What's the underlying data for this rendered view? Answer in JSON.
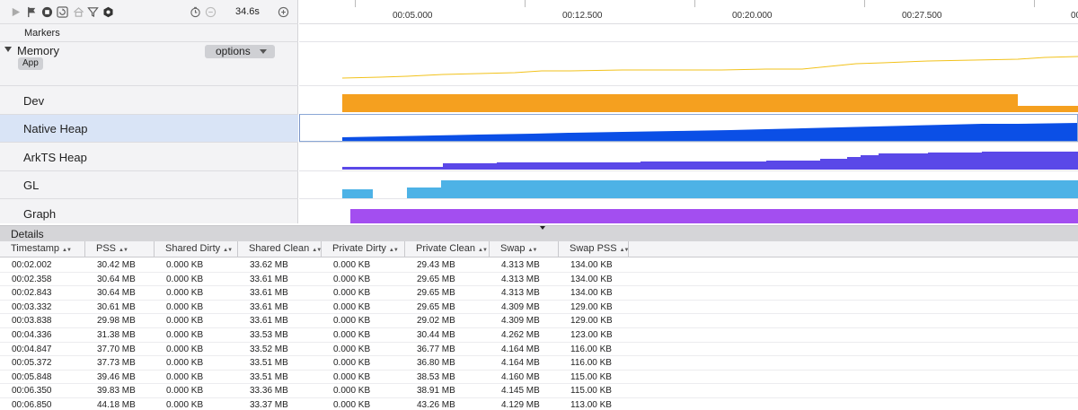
{
  "toolbar": {
    "icons": [
      "play-icon",
      "flag-icon",
      "record-stop-icon",
      "refresh-icon",
      "home-icon",
      "filter-icon",
      "settings-icon",
      "clock-icon",
      "zoom-out-icon",
      "zoom-in-icon"
    ],
    "duration": "34.6s"
  },
  "markers_label": "Markers",
  "memory": {
    "label": "Memory",
    "chip": "App",
    "options_label": "options"
  },
  "tracks": [
    {
      "label": "Dev",
      "color": "#f5a01f"
    },
    {
      "label": "Native Heap",
      "color": "#0b4fe6"
    },
    {
      "label": "ArkTS Heap",
      "color": "#5a48e8"
    },
    {
      "label": "GL",
      "color": "#4db2e6"
    },
    {
      "label": "Graph",
      "color": "#a34ef0"
    }
  ],
  "memory_line_color": "#f2c21b",
  "ruler": {
    "ticks": [
      "00:05.000",
      "00:12.500",
      "00:20.000",
      "00:27.500",
      "00"
    ]
  },
  "details": {
    "title": "Details",
    "columns": [
      "Timestamp",
      "PSS",
      "Shared Dirty",
      "Shared Clean",
      "Private Dirty",
      "Private Clean",
      "Swap",
      "Swap PSS"
    ],
    "rows": [
      [
        "00:02.002",
        "30.42 MB",
        "0.000 KB",
        "33.62 MB",
        "0.000 KB",
        "29.43 MB",
        "4.313 MB",
        "134.00 KB"
      ],
      [
        "00:02.358",
        "30.64 MB",
        "0.000 KB",
        "33.61 MB",
        "0.000 KB",
        "29.65 MB",
        "4.313 MB",
        "134.00 KB"
      ],
      [
        "00:02.843",
        "30.64 MB",
        "0.000 KB",
        "33.61 MB",
        "0.000 KB",
        "29.65 MB",
        "4.313 MB",
        "134.00 KB"
      ],
      [
        "00:03.332",
        "30.61 MB",
        "0.000 KB",
        "33.61 MB",
        "0.000 KB",
        "29.65 MB",
        "4.309 MB",
        "129.00 KB"
      ],
      [
        "00:03.838",
        "29.98 MB",
        "0.000 KB",
        "33.61 MB",
        "0.000 KB",
        "29.02 MB",
        "4.309 MB",
        "129.00 KB"
      ],
      [
        "00:04.336",
        "31.38 MB",
        "0.000 KB",
        "33.53 MB",
        "0.000 KB",
        "30.44 MB",
        "4.262 MB",
        "123.00 KB"
      ],
      [
        "00:04.847",
        "37.70 MB",
        "0.000 KB",
        "33.52 MB",
        "0.000 KB",
        "36.77 MB",
        "4.164 MB",
        "116.00 KB"
      ],
      [
        "00:05.372",
        "37.73 MB",
        "0.000 KB",
        "33.51 MB",
        "0.000 KB",
        "36.80 MB",
        "4.164 MB",
        "116.00 KB"
      ],
      [
        "00:05.848",
        "39.46 MB",
        "0.000 KB",
        "33.51 MB",
        "0.000 KB",
        "38.53 MB",
        "4.160 MB",
        "115.00 KB"
      ],
      [
        "00:06.350",
        "39.83 MB",
        "0.000 KB",
        "33.36 MB",
        "0.000 KB",
        "38.91 MB",
        "4.145 MB",
        "115.00 KB"
      ],
      [
        "00:06.850",
        "44.18 MB",
        "0.000 KB",
        "33.37 MB",
        "0.000 KB",
        "43.26 MB",
        "4.129 MB",
        "113.00 KB"
      ]
    ]
  }
}
